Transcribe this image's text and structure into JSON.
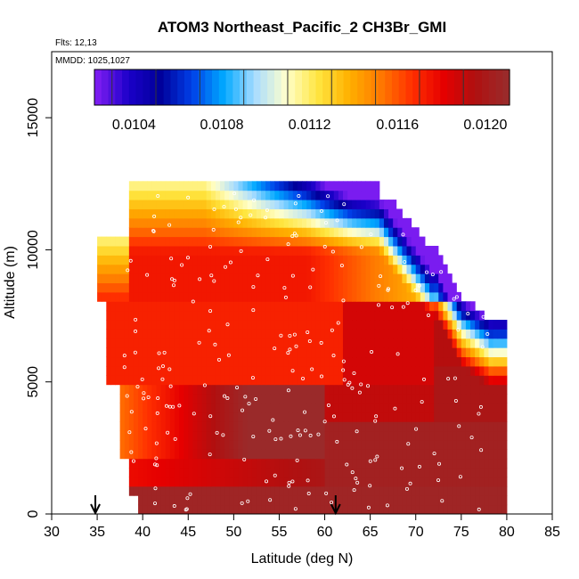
{
  "chart_data": {
    "type": "heatmap",
    "title": "ATOM3 Northeast_Pacific_2 CH3Br_GMI",
    "flights_label": "Flts: 12,13",
    "dates_label": "MMDD: 1025,1027",
    "xlabel": "Latitude (deg N)",
    "ylabel": "Altitude (m)",
    "xlim": [
      30,
      85
    ],
    "ylim": [
      0,
      17500
    ],
    "x_ticks": [
      "30",
      "35",
      "40",
      "45",
      "50",
      "55",
      "60",
      "65",
      "70",
      "75",
      "80",
      "85"
    ],
    "y_ticks": [
      "0",
      "5000",
      "10000",
      "15000"
    ],
    "colorbar": {
      "range": [
        0.01022,
        0.01211
      ],
      "tick_values": [
        0.0104,
        0.0108,
        0.0112,
        0.0116,
        0.012
      ],
      "tick_labels": [
        "0.0104",
        "0.0108",
        "0.0112",
        "0.0116",
        "0.0120"
      ],
      "colors": [
        "#7a1cf0",
        "#1a00c8",
        "#00009a",
        "#0040e8",
        "#00a8ff",
        "#a8dcff",
        "#ffffcc",
        "#ffe640",
        "#ffb000",
        "#ff7a00",
        "#ff3000",
        "#e60000",
        "#b01010",
        "#9a2a2a"
      ]
    },
    "arrows_at_latitude": [
      34.8,
      61.2
    ],
    "grid": false,
    "legend": "colorbar-top"
  }
}
